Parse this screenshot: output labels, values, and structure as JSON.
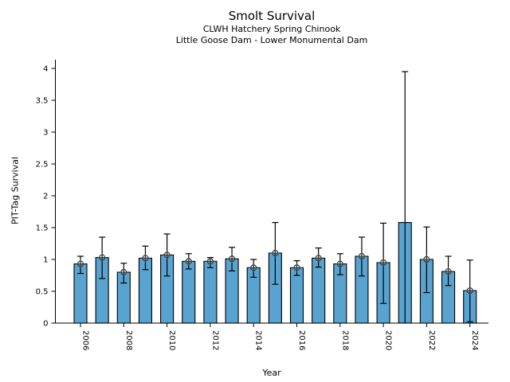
{
  "header": {
    "title": "Smolt Survival",
    "subtitle1": "CLWH Hatchery Spring Chinook",
    "subtitle2": "Little Goose Dam - Lower Monumental Dam"
  },
  "chart_data": {
    "type": "bar",
    "title": "Smolt Survival",
    "subtitles": [
      "CLWH Hatchery Spring Chinook",
      "Little Goose Dam - Lower Monumental Dam"
    ],
    "xlabel": "Year",
    "ylabel": "PIT-Tag Survival",
    "ylim": [
      0,
      4.15
    ],
    "yticks": [
      0,
      0.5,
      1,
      1.5,
      2,
      2.5,
      3,
      3.5,
      4
    ],
    "xticks": [
      2006,
      2008,
      2010,
      2012,
      2014,
      2016,
      2018,
      2020,
      2022,
      2024
    ],
    "grid": false,
    "legend": null,
    "bar_color": "#58A3CF",
    "bar_edge_color": "#000000",
    "error_color": "#000000",
    "marker_color": "#3a3a3a",
    "marker_style": "open-circle-cross",
    "years": [
      2006,
      2007,
      2008,
      2009,
      2010,
      2011,
      2012,
      2013,
      2014,
      2015,
      2016,
      2017,
      2018,
      2019,
      2020,
      2021,
      2022,
      2023,
      2024
    ],
    "values": [
      0.93,
      1.03,
      0.8,
      1.02,
      1.07,
      0.97,
      0.97,
      1.01,
      0.87,
      1.1,
      0.87,
      1.02,
      0.93,
      1.05,
      0.95,
      1.58,
      1.0,
      0.81,
      0.51
    ],
    "err_low": [
      0.78,
      0.7,
      0.63,
      0.84,
      0.74,
      0.85,
      0.87,
      0.82,
      0.72,
      0.61,
      0.75,
      0.88,
      0.76,
      0.74,
      0.31,
      0.0,
      0.48,
      0.59,
      0.02
    ],
    "err_high": [
      1.05,
      1.35,
      0.94,
      1.21,
      1.4,
      1.09,
      1.03,
      1.19,
      1.0,
      1.58,
      0.98,
      1.18,
      1.09,
      1.35,
      1.57,
      3.95,
      1.51,
      1.05,
      0.99
    ],
    "markers": [
      0.93,
      1.03,
      0.8,
      1.02,
      1.07,
      0.97,
      0.97,
      1.01,
      0.87,
      1.1,
      0.87,
      1.02,
      0.93,
      1.05,
      0.95,
      null,
      1.0,
      0.81,
      0.51
    ]
  }
}
